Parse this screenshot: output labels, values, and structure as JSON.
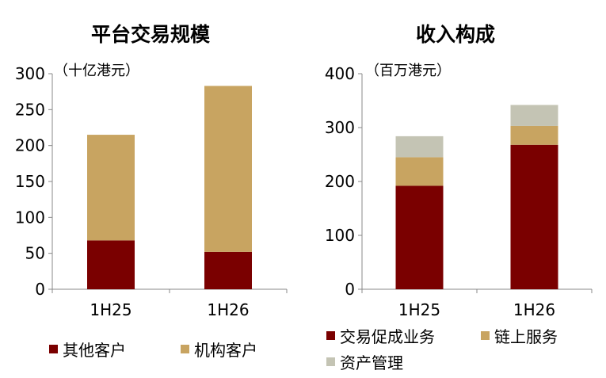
{
  "chart_data": [
    {
      "type": "bar",
      "stacked": true,
      "title": "平台交易规模",
      "unit_label": "（十亿港元）",
      "categories": [
        "1H25",
        "1H26"
      ],
      "ylim": [
        0,
        300
      ],
      "yticks": [
        "0",
        "50",
        "100",
        "150",
        "200",
        "250",
        "300"
      ],
      "grid": false,
      "legend_position": "bottom",
      "series": [
        {
          "name": "其他客户",
          "color": "#7A0000",
          "values": [
            68,
            52
          ]
        },
        {
          "name": "机构客户",
          "color": "#C8A461",
          "values": [
            147,
            231
          ]
        }
      ]
    },
    {
      "type": "bar",
      "stacked": true,
      "title": "收入构成",
      "unit_label": "（百万港元）",
      "categories": [
        "1H25",
        "1H26"
      ],
      "ylim": [
        0,
        400
      ],
      "yticks": [
        "0",
        "100",
        "200",
        "300",
        "400"
      ],
      "grid": false,
      "legend_position": "bottom",
      "series": [
        {
          "name": "交易促成业务",
          "color": "#7A0000",
          "values": [
            192,
            268
          ]
        },
        {
          "name": "链上服务",
          "color": "#C8A461",
          "values": [
            53,
            35
          ]
        },
        {
          "name": "资产管理",
          "color": "#C4C4B4",
          "values": [
            39,
            39
          ]
        }
      ]
    }
  ]
}
